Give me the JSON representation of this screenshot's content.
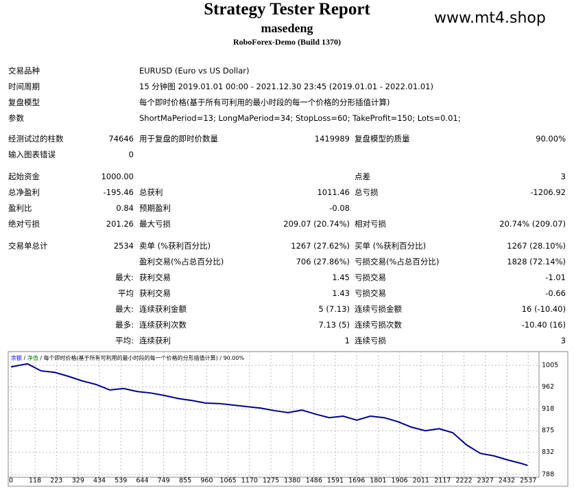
{
  "header": {
    "title": "Strategy Tester Report",
    "subtitle": "masedeng",
    "broker": "RoboForex-Demo (Build 1370)",
    "watermark": "www.mt4.shop"
  },
  "info": [
    {
      "label": "交易品种",
      "text": "EURUSD (Euro vs US Dollar)"
    },
    {
      "label": "时间周期",
      "text": "15 分钟图 2019.01.01 00:00 - 2021.12.30 23:45 (2019.01.01 - 2022.01.01)"
    },
    {
      "label": "复盘模型",
      "text": "每个即时价格(基于所有可利用的最小时段的每一个价格的分形插值计算)"
    },
    {
      "label": "参数",
      "text": "ShortMaPeriod=13; LongMaPeriod=34; StopLoss=60; TakeProfit=150; Lots=0.01;"
    }
  ],
  "rows": [
    {
      "label": "经测试过的柱数",
      "value": "74646",
      "label2": "用于复盘的即时价数量",
      "value2": "1419989",
      "label3": "复盘模型的质量",
      "value3": "90.00%"
    },
    {
      "label": "输入图表错误",
      "value": "0"
    },
    {
      "gap": true,
      "label": "起始资金",
      "value": "1000.00",
      "label3": "点差",
      "value3": "3"
    },
    {
      "label": "总净盈利",
      "value": "-195.46",
      "label2": "总获利",
      "value2": "1011.46",
      "label3": "总亏损",
      "value3": "-1206.92"
    },
    {
      "label": "盈利比",
      "value": "0.84",
      "label2": "预期盈利",
      "value2": "-0.08"
    },
    {
      "label": "绝对亏损",
      "value": "201.26",
      "label2": "最大亏损",
      "value2": "209.07 (20.74%)",
      "label3": "相对亏损",
      "value3": "20.74% (209.07)"
    },
    {
      "gap": true,
      "label": "交易单总计",
      "value": "2534",
      "label2": "卖单 (%获利百分比)",
      "value2": "1267 (27.62%)",
      "label3": "买单 (%获利百分比)",
      "value3": "1267 (28.10%)"
    },
    {
      "label2": "盈利交易(%占总百分比)",
      "value2": "706 (27.86%)",
      "label3": "亏损交易(%占总百分比)",
      "value3": "1828 (72.14%)"
    },
    {
      "value": "最大:",
      "label2": "获利交易",
      "value2": "1.45",
      "label3": "亏损交易",
      "value3": "-1.01"
    },
    {
      "value": "平均",
      "label2": "获利交易",
      "value2": "1.43",
      "label3": "亏损交易",
      "value3": "-0.66"
    },
    {
      "value": "最大:",
      "label2": "连续获利金额",
      "value2": "5 (7.13)",
      "label3": "连续亏损金额",
      "value3": "16 (-10.40)"
    },
    {
      "value": "最多:",
      "label2": "连续获利次数",
      "value2": "7.13 (5)",
      "label3": "连续亏损次数",
      "value3": "-10.40 (16)"
    },
    {
      "value": "平均:",
      "label2": "连续获利",
      "value2": "1",
      "label3": "连续亏损",
      "value3": "3"
    }
  ],
  "chart_data": {
    "type": "line",
    "legend": [
      {
        "text": "余额",
        "color": "#0000ff"
      },
      {
        "text": " / ",
        "color": "#000000"
      },
      {
        "text": "净值",
        "color": "#008000"
      },
      {
        "text": " / 每个即时价格(基于所有可利用的最小时段的每一个价格的分形插值计算) / 90.00%",
        "color": "#000000"
      }
    ],
    "x": [
      0,
      81,
      148,
      215,
      283,
      350,
      417,
      485,
      552,
      619,
      686,
      754,
      821,
      888,
      956,
      1023,
      1090,
      1157,
      1225,
      1292,
      1359,
      1427,
      1494,
      1561,
      1629,
      1696,
      1763,
      1830,
      1898,
      1965,
      2032,
      2100,
      2167,
      2234,
      2302,
      2369,
      2436,
      2503,
      2534
    ],
    "series": [
      {
        "name": "余额",
        "color": "#00008b",
        "values": [
          1002,
          1008,
          994,
          991,
          983,
          974,
          967,
          956,
          959,
          953,
          950,
          945,
          939,
          935,
          930,
          929,
          926,
          923,
          920,
          915,
          911,
          916,
          908,
          901,
          904,
          896,
          904,
          901,
          893,
          882,
          875,
          879,
          871,
          847,
          830,
          825,
          817,
          810,
          806
        ]
      }
    ],
    "xlim": [
      0,
      2590
    ],
    "ylim": [
      786.6,
      1029.6
    ],
    "xticks": [
      0,
      118,
      223,
      329,
      434,
      539,
      644,
      749,
      855,
      960,
      1065,
      1170,
      1275,
      1380,
      1486,
      1591,
      1696,
      1801,
      1906,
      2011,
      2117,
      2222,
      2327,
      2432,
      2537
    ],
    "yticks": [
      1005,
      962,
      918,
      875,
      832,
      788
    ],
    "grid": true
  }
}
